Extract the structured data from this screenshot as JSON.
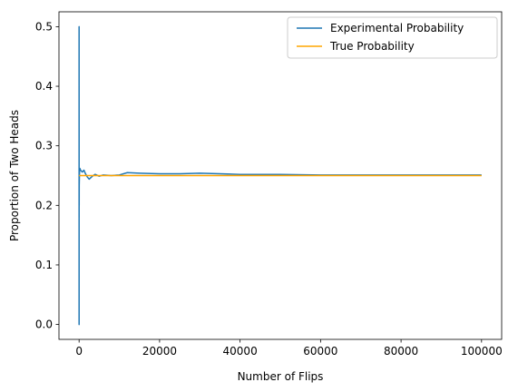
{
  "chart_data": {
    "type": "line",
    "xlabel": "Number of Flips",
    "ylabel": "Proportion of Two Heads",
    "xlim": [
      -5000,
      105000
    ],
    "ylim": [
      -0.025,
      0.525
    ],
    "xticks": [
      0,
      20000,
      40000,
      60000,
      80000,
      100000
    ],
    "xtick_labels": [
      "0",
      "20000",
      "40000",
      "60000",
      "80000",
      "100000"
    ],
    "yticks": [
      0.0,
      0.1,
      0.2,
      0.3,
      0.4,
      0.5
    ],
    "ytick_labels": [
      "0.0",
      "0.1",
      "0.2",
      "0.3",
      "0.4",
      "0.5"
    ],
    "grid": false,
    "legend_position": "top-right",
    "series": [
      {
        "name": "Experimental Probability",
        "color": "#1f77b4",
        "x": [
          1,
          2,
          3,
          5,
          8,
          12,
          20,
          30,
          50,
          80,
          120,
          200,
          300,
          500,
          800,
          1200,
          1600,
          2000,
          2500,
          3000,
          3500,
          4000,
          5000,
          6000,
          8000,
          10000,
          12000,
          15000,
          20000,
          25000,
          30000,
          35000,
          40000,
          50000,
          60000,
          70000,
          80000,
          90000,
          100000
        ],
        "y": [
          0.0,
          0.5,
          0.0,
          0.4,
          0.18,
          0.25,
          0.2,
          0.233,
          0.24,
          0.25,
          0.258,
          0.262,
          0.26,
          0.258,
          0.256,
          0.259,
          0.253,
          0.248,
          0.244,
          0.247,
          0.25,
          0.252,
          0.249,
          0.251,
          0.25,
          0.251,
          0.255,
          0.254,
          0.253,
          0.253,
          0.254,
          0.253,
          0.252,
          0.252,
          0.251,
          0.251,
          0.251,
          0.251,
          0.251
        ]
      },
      {
        "name": "True Probability",
        "color": "#ffa500",
        "x": [
          0,
          100000
        ],
        "y": [
          0.25,
          0.25
        ]
      }
    ]
  }
}
